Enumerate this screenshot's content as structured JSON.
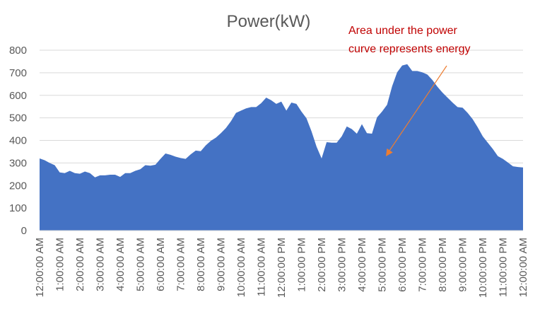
{
  "chart_data": {
    "type": "area",
    "title": "Power(kW)",
    "xlabel": "",
    "ylabel": "",
    "ylim": [
      0,
      800
    ],
    "yticks": [
      0,
      100,
      200,
      300,
      400,
      500,
      600,
      700,
      800
    ],
    "x_tick_labels": [
      "12:00:00 AM",
      "1:00:00 AM",
      "2:00:00 AM",
      "3:00:00 AM",
      "4:00:00 AM",
      "5:00:00 AM",
      "6:00:00 AM",
      "7:00:00 AM",
      "8:00:00 AM",
      "9:00:00 AM",
      "10:00:00 AM",
      "11:00:00 AM",
      "12:00:00 PM",
      "1:00:00 PM",
      "2:00:00 PM",
      "3:00:00 PM",
      "4:00:00 PM",
      "5:00:00 PM",
      "6:00:00 PM",
      "7:00:00 PM",
      "8:00:00 PM",
      "9:00:00 PM",
      "10:00:00 PM",
      "11:00:00 PM",
      "12:00:00 AM"
    ],
    "x_hours": [
      0,
      0.25,
      0.5,
      0.75,
      1,
      1.25,
      1.5,
      1.75,
      2,
      2.25,
      2.5,
      2.75,
      3,
      3.25,
      3.5,
      3.75,
      4,
      4.25,
      4.5,
      4.75,
      5,
      5.25,
      5.5,
      5.75,
      6,
      6.25,
      6.5,
      6.75,
      7,
      7.25,
      7.5,
      7.75,
      8,
      8.25,
      8.5,
      8.75,
      9,
      9.25,
      9.5,
      9.75,
      10,
      10.25,
      10.5,
      10.75,
      11,
      11.25,
      11.5,
      11.75,
      12,
      12.25,
      12.5,
      12.75,
      13,
      13.25,
      13.5,
      13.75,
      14,
      14.25,
      14.5,
      14.75,
      15,
      15.25,
      15.5,
      15.75,
      16,
      16.25,
      16.5,
      16.75,
      17,
      17.25,
      17.5,
      17.75,
      18,
      18.25,
      18.5,
      18.75,
      19,
      19.25,
      19.5,
      19.75,
      20,
      20.25,
      20.5,
      20.75,
      21,
      21.25,
      21.5,
      21.75,
      22,
      22.25,
      22.5,
      22.75,
      23,
      23.25,
      23.5,
      23.75,
      24
    ],
    "series": [
      {
        "name": "",
        "color": "#4472c4",
        "values": [
          320,
          312,
          300,
          290,
          258,
          255,
          265,
          255,
          252,
          262,
          255,
          236,
          245,
          245,
          248,
          248,
          238,
          255,
          255,
          265,
          272,
          290,
          288,
          292,
          318,
          342,
          336,
          328,
          322,
          318,
          338,
          355,
          352,
          378,
          398,
          412,
          432,
          455,
          485,
          522,
          532,
          542,
          548,
          548,
          565,
          590,
          578,
          562,
          572,
          532,
          568,
          562,
          528,
          498,
          440,
          372,
          320,
          392,
          390,
          390,
          418,
          462,
          450,
          430,
          472,
          432,
          430,
          502,
          528,
          558,
          640,
          702,
          732,
          738,
          708,
          708,
          702,
          692,
          668,
          638,
          612,
          590,
          568,
          548,
          545,
          522,
          494,
          458,
          418,
          390,
          362,
          330,
          318,
          302,
          285,
          282,
          280
        ]
      }
    ],
    "annotation": {
      "text_lines": [
        "Area under the power",
        "curve represents energy"
      ],
      "color": "#c00000",
      "arrow_color": "#ed7d31"
    },
    "grid": true,
    "legend": "none"
  }
}
